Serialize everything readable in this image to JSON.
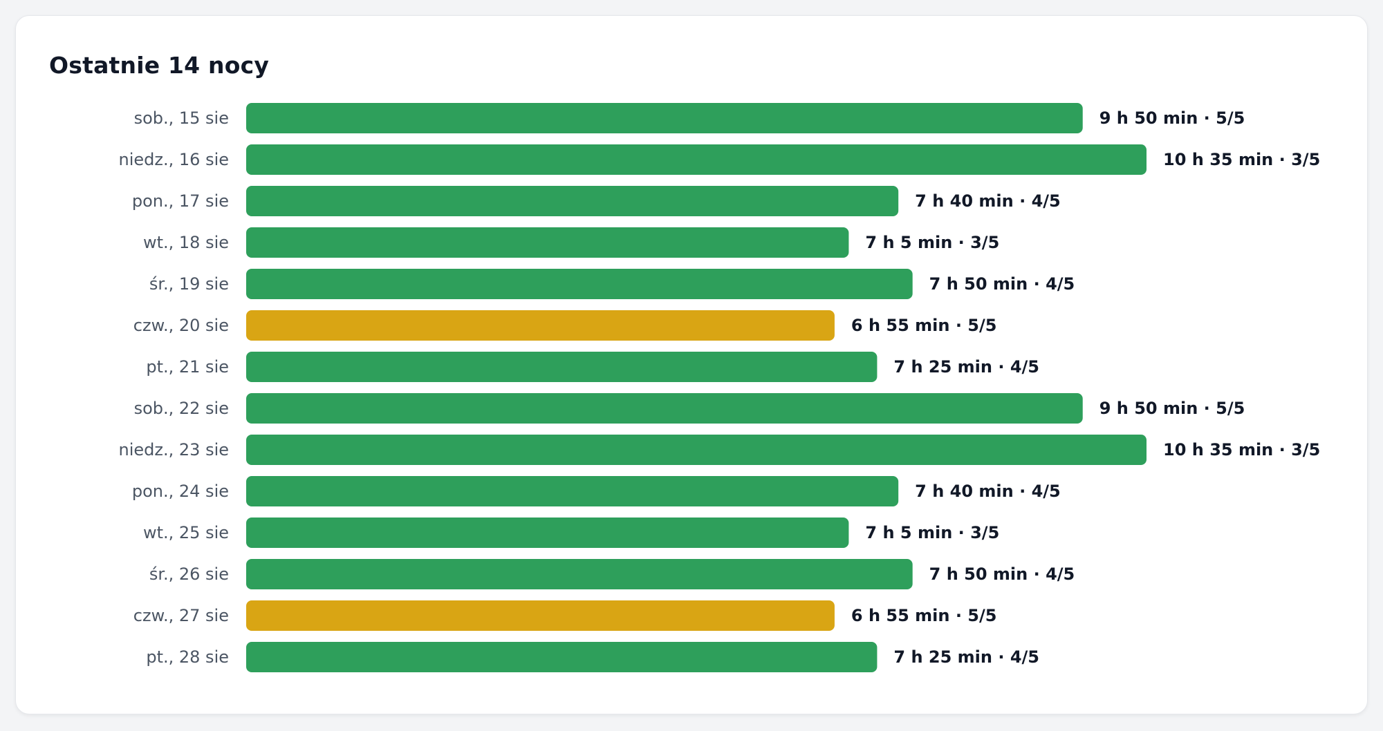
{
  "title": "Ostatnie 14 nocy",
  "colors": {
    "good": "#2e9f5b",
    "short": "#d9a514"
  },
  "chart_data": {
    "type": "bar",
    "orientation": "horizontal",
    "title": "Ostatnie 14 nocy",
    "x_unit": "minutes",
    "categories": [
      "sob., 15 sie",
      "niedz., 16 sie",
      "pon., 17 sie",
      "wt., 18 sie",
      "śr., 19 sie",
      "czw., 20 sie",
      "pt., 21 sie",
      "sob., 22 sie",
      "niedz., 23 sie",
      "pon., 24 sie",
      "wt., 25 sie",
      "śr., 26 sie",
      "czw., 27 sie",
      "pt., 28 sie"
    ],
    "values": [
      590,
      635,
      460,
      425,
      470,
      415,
      445,
      590,
      635,
      460,
      425,
      470,
      415,
      445
    ],
    "value_labels": [
      "9 h 50 min · 5/5",
      "10 h 35 min · 3/5",
      "7 h 40 min · 4/5",
      "7 h 5 min · 3/5",
      "7 h 50 min · 4/5",
      "6 h 55 min · 5/5",
      "7 h 25 min · 4/5",
      "9 h 50 min · 5/5",
      "10 h 35 min · 3/5",
      "7 h 40 min · 4/5",
      "7 h 5 min · 3/5",
      "7 h 50 min · 4/5",
      "6 h 55 min · 5/5",
      "7 h 25 min · 4/5"
    ],
    "bar_colors": [
      "#2e9f5b",
      "#2e9f5b",
      "#2e9f5b",
      "#2e9f5b",
      "#2e9f5b",
      "#d9a514",
      "#2e9f5b",
      "#2e9f5b",
      "#2e9f5b",
      "#2e9f5b",
      "#2e9f5b",
      "#2e9f5b",
      "#d9a514",
      "#2e9f5b"
    ],
    "grid": false,
    "legend": "none"
  }
}
